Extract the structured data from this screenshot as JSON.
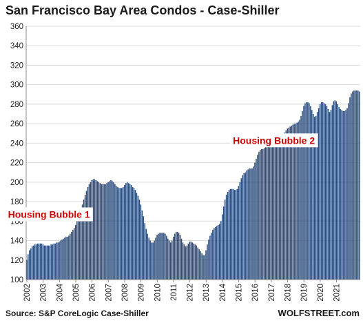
{
  "chart_data": {
    "type": "bar",
    "title": "San Francisco Bay Area Condos - Case-Shiller",
    "source": "Source: S&P CoreLogic Case-Shiller",
    "brand": "WOLFSTREET.com",
    "xlabel": "",
    "ylabel": "",
    "ylim": [
      100,
      360
    ],
    "yticks": [
      100,
      120,
      140,
      160,
      180,
      200,
      220,
      240,
      260,
      280,
      300,
      320,
      340,
      360
    ],
    "year_labels": [
      "2002",
      "2003",
      "2004",
      "2005",
      "2006",
      "2007",
      "2008",
      "2009",
      "2010",
      "2011",
      "2012",
      "2013",
      "2014",
      "2015",
      "2016",
      "2017",
      "2018",
      "2019",
      "2020",
      "2021"
    ],
    "grid": true,
    "bar_color": "#2e4e7e",
    "annotation_color": "#d00000",
    "annotations": [
      {
        "text": "Housing Bubble 1",
        "year": 2003.4,
        "value": 166
      },
      {
        "text": "Housing Bubble 2",
        "year": 2017.2,
        "value": 242
      }
    ],
    "series": [
      {
        "start": "2002-01",
        "frequency": "monthly",
        "values": [
          120,
          126,
          130,
          132,
          134,
          135,
          136,
          136,
          137,
          137,
          137,
          137,
          136,
          135,
          135,
          135,
          135,
          135,
          136,
          136,
          137,
          137,
          138,
          138,
          139,
          140,
          141,
          142,
          143,
          144,
          144,
          145,
          147,
          149,
          151,
          153,
          156,
          160,
          164,
          168,
          172,
          177,
          182,
          187,
          191,
          195,
          198,
          200,
          202,
          203,
          203,
          202,
          201,
          200,
          199,
          198,
          198,
          198,
          198,
          199,
          200,
          201,
          202,
          201,
          200,
          198,
          196,
          195,
          194,
          194,
          194,
          195,
          197,
          199,
          200,
          199,
          198,
          197,
          195,
          194,
          192,
          189,
          186,
          182,
          177,
          171,
          165,
          158,
          152,
          147,
          143,
          140,
          138,
          138,
          140,
          143,
          146,
          147,
          148,
          148,
          148,
          148,
          147,
          145,
          142,
          140,
          138,
          140,
          144,
          147,
          149,
          149,
          148,
          146,
          142,
          138,
          136,
          134,
          135,
          137,
          139,
          139,
          138,
          137,
          136,
          135,
          133,
          131,
          129,
          127,
          125,
          125,
          130,
          136,
          141,
          145,
          148,
          151,
          153,
          154,
          155,
          156,
          157,
          160,
          167,
          175,
          182,
          187,
          190,
          192,
          193,
          193,
          193,
          192,
          192,
          193,
          196,
          200,
          204,
          207,
          209,
          210,
          212,
          213,
          214,
          214,
          214,
          216,
          220,
          224,
          228,
          231,
          233,
          234,
          234,
          235,
          236,
          236,
          236,
          236,
          236,
          237,
          238,
          238,
          238,
          238,
          239,
          242,
          245,
          248,
          251,
          253,
          255,
          256,
          257,
          258,
          259,
          260,
          260,
          261,
          262,
          264,
          268,
          273,
          278,
          281,
          282,
          282,
          281,
          278,
          274,
          270,
          267,
          268,
          272,
          276,
          280,
          282,
          282,
          281,
          280,
          278,
          275,
          272,
          274,
          279,
          283,
          284,
          283,
          280,
          277,
          275,
          274,
          273,
          273,
          274,
          276,
          281,
          287,
          291,
          293,
          294,
          294,
          294,
          294,
          293
        ]
      }
    ]
  }
}
